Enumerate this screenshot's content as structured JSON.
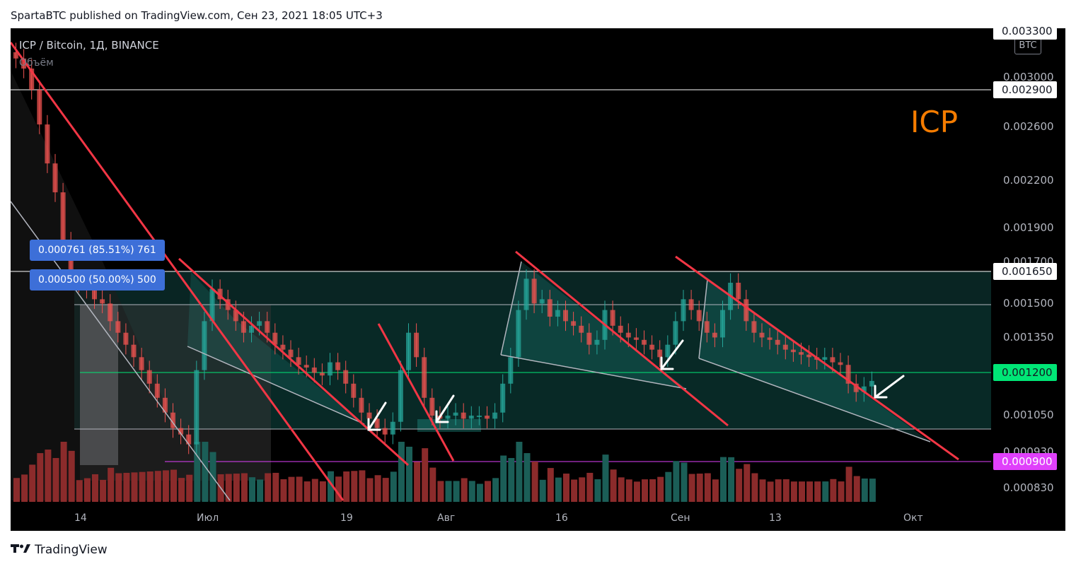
{
  "header": {
    "published_text": "SpartaBTC published on TradingView.com, Сен 23, 2021 18:05 UTC+3"
  },
  "chart": {
    "symbol_title": "ICP / Bitcoin, 1Д, BINANCE",
    "volume_label": "Объём",
    "currency": "BTC",
    "annotation": "ICP",
    "fib_badges": [
      {
        "text": "0.000761 (85.51%) 761"
      },
      {
        "text": "0.000500 (50.00%) 500"
      }
    ],
    "price_scale": [
      "0.003300",
      "0.003000",
      "0.002600",
      "0.002200",
      "0.001900",
      "0.001700",
      "0.001500",
      "0.001350",
      "0.001050",
      "0.000930",
      "0.000830"
    ],
    "price_tags": [
      {
        "text": "0.003300"
      },
      {
        "text": "0.002900"
      },
      {
        "text": "0.001650"
      },
      {
        "text": "0.001200"
      },
      {
        "text": "0.000900"
      }
    ],
    "date_labels": [
      "14",
      "Июл",
      "19",
      "Авг",
      "16",
      "Сен",
      "13",
      "Окт"
    ],
    "colors": {
      "background": "#000000",
      "up": "#26a69a",
      "down": "#ef5350",
      "trendline": "#f23645",
      "support_green": "#00e676",
      "support_magenta": "#e040fb",
      "annotation": "#f57c00",
      "fib_badge": "#3d6fd8"
    }
  },
  "chart_data": {
    "type": "candlestick",
    "title": "ICP / Bitcoin, 1Д, BINANCE",
    "x_ticks": [
      "14",
      "Июл",
      "19",
      "Авг",
      "16",
      "Сен",
      "13",
      "Окт"
    ],
    "y_ticks": [
      0.0033,
      0.003,
      0.0026,
      0.0022,
      0.0019,
      0.0017,
      0.0015,
      0.00135,
      0.00105,
      0.00093,
      0.00083
    ],
    "log_scale": true,
    "horizontal_levels": [
      {
        "value": 0.0029,
        "color": "#ffffff"
      },
      {
        "value": 0.00165,
        "color": "#ffffff"
      },
      {
        "value": 0.0012,
        "color": "#00e676"
      },
      {
        "value": 0.0009,
        "color": "#e040fb"
      }
    ],
    "fib_levels": [
      {
        "value": 0.000761,
        "percent": 85.51
      },
      {
        "value": 0.0005,
        "percent": 50.0
      }
    ],
    "close_series": [
      0.0032,
      0.0031,
      0.0029,
      0.0026,
      0.0023,
      0.0021,
      0.0018,
      0.0016,
      0.00158,
      0.00155,
      0.0015,
      0.00148,
      0.0014,
      0.00135,
      0.0013,
      0.00125,
      0.0012,
      0.00115,
      0.0011,
      0.00105,
      0.001,
      0.00098,
      0.00095,
      0.0012,
      0.0014,
      0.00155,
      0.0015,
      0.00145,
      0.0014,
      0.00135,
      0.00138,
      0.0014,
      0.00135,
      0.0013,
      0.00128,
      0.00125,
      0.00122,
      0.00121,
      0.00119,
      0.00118,
      0.00123,
      0.0012,
      0.00115,
      0.0011,
      0.00105,
      0.00103,
      0.001,
      0.00098,
      0.00102,
      0.0012,
      0.00135,
      0.00125,
      0.0011,
      0.00104,
      0.00103,
      0.00104,
      0.00105,
      0.00103,
      0.00104,
      0.00104,
      0.00103,
      0.00105,
      0.00115,
      0.00125,
      0.00145,
      0.0016,
      0.00148,
      0.0015,
      0.00142,
      0.00145,
      0.0014,
      0.00138,
      0.00135,
      0.0013,
      0.00132,
      0.00145,
      0.00138,
      0.00135,
      0.00133,
      0.00132,
      0.0013,
      0.00128,
      0.00125,
      0.0013,
      0.0014,
      0.0015,
      0.00145,
      0.0014,
      0.00135,
      0.00133,
      0.00145,
      0.00158,
      0.0015,
      0.0014,
      0.00135,
      0.00133,
      0.00132,
      0.0013,
      0.00128,
      0.00127,
      0.00126,
      0.00125,
      0.00124,
      0.00125,
      0.00123,
      0.00122,
      0.00115,
      0.00112,
      0.00114,
      0.00116
    ]
  }
}
